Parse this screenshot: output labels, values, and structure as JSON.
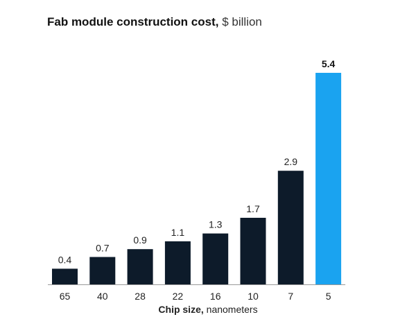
{
  "chart_data": {
    "type": "bar",
    "title": "Fab module construction cost,",
    "title_unit": "$ billion",
    "xlabel": "Chip size,",
    "xlabel_unit": "nanometers",
    "categories": [
      "65",
      "40",
      "28",
      "22",
      "16",
      "10",
      "7",
      "5"
    ],
    "values": [
      0.4,
      0.7,
      0.9,
      1.1,
      1.3,
      1.7,
      2.9,
      5.4
    ],
    "data_labels": [
      "0.4",
      "0.7",
      "0.9",
      "1.1",
      "1.3",
      "1.7",
      "2.9",
      "5.4"
    ],
    "highlight_index": 7,
    "ylim": [
      0,
      5.4
    ],
    "grid": false,
    "legend": "none",
    "colors": {
      "bar": "#0d1b2a",
      "highlight": "#1aa3f0",
      "axis": "#999999"
    }
  }
}
